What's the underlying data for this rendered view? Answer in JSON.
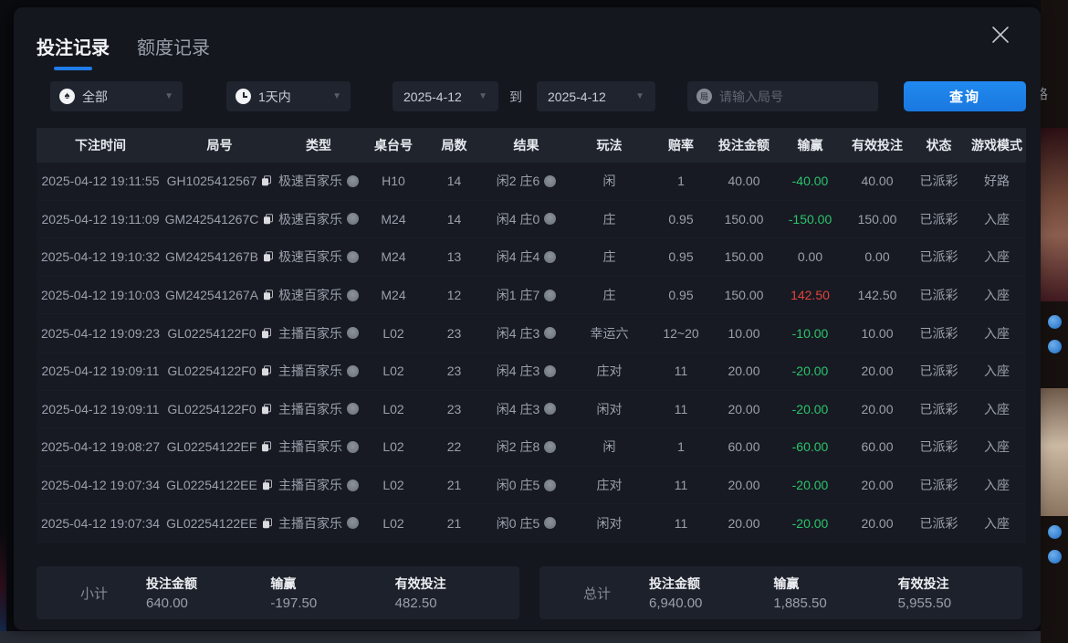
{
  "tabs": [
    {
      "label": "投注记录",
      "active": true
    },
    {
      "label": "额度记录",
      "active": false
    }
  ],
  "filters": {
    "category": {
      "value": "全部",
      "icon": "poker-chip-icon"
    },
    "range": {
      "value": "1天内",
      "icon": "clock-icon"
    },
    "date_from": "2025-4-12",
    "to_label": "到",
    "date_to": "2025-4-12",
    "search": {
      "placeholder": "请输入局号",
      "icon": "game-round-icon"
    },
    "query_button": "查询"
  },
  "background": {
    "road_text": "路"
  },
  "table": {
    "columns": [
      "下注时间",
      "局号",
      "类型",
      "桌台号",
      "局数",
      "结果",
      "玩法",
      "赔率",
      "投注金额",
      "输赢",
      "有效投注",
      "状态",
      "游戏模式"
    ],
    "rows": [
      {
        "time": "2025-04-12 19:11:55",
        "game_no": "GH1025412567",
        "type": "极速百家乐",
        "table_no": "H10",
        "rounds": "14",
        "result": "闲2 庄6",
        "play": "闲",
        "odds": "1",
        "bet": "40.00",
        "win_loss": "-40.00",
        "win_loss_color": "green",
        "valid": "40.00",
        "status": "已派彩",
        "mode": "好路"
      },
      {
        "time": "2025-04-12 19:11:09",
        "game_no": "GM242541267C",
        "type": "极速百家乐",
        "table_no": "M24",
        "rounds": "14",
        "result": "闲4 庄0",
        "play": "庄",
        "odds": "0.95",
        "bet": "150.00",
        "win_loss": "-150.00",
        "win_loss_color": "green",
        "valid": "150.00",
        "status": "已派彩",
        "mode": "入座"
      },
      {
        "time": "2025-04-12 19:10:32",
        "game_no": "GM242541267B",
        "type": "极速百家乐",
        "table_no": "M24",
        "rounds": "13",
        "result": "闲4 庄4",
        "play": "庄",
        "odds": "0.95",
        "bet": "150.00",
        "win_loss": "0.00",
        "win_loss_color": "muted",
        "valid": "0.00",
        "status": "已派彩",
        "mode": "入座"
      },
      {
        "time": "2025-04-12 19:10:03",
        "game_no": "GM242541267A",
        "type": "极速百家乐",
        "table_no": "M24",
        "rounds": "12",
        "result": "闲1 庄7",
        "play": "庄",
        "odds": "0.95",
        "bet": "150.00",
        "win_loss": "142.50",
        "win_loss_color": "red",
        "valid": "142.50",
        "status": "已派彩",
        "mode": "入座"
      },
      {
        "time": "2025-04-12 19:09:23",
        "game_no": "GL02254122F0",
        "type": "主播百家乐",
        "table_no": "L02",
        "rounds": "23",
        "result": "闲4 庄3",
        "play": "幸运六",
        "odds": "12~20",
        "bet": "10.00",
        "win_loss": "-10.00",
        "win_loss_color": "green",
        "valid": "10.00",
        "status": "已派彩",
        "mode": "入座"
      },
      {
        "time": "2025-04-12 19:09:11",
        "game_no": "GL02254122F0",
        "type": "主播百家乐",
        "table_no": "L02",
        "rounds": "23",
        "result": "闲4 庄3",
        "play": "庄对",
        "odds": "11",
        "bet": "20.00",
        "win_loss": "-20.00",
        "win_loss_color": "green",
        "valid": "20.00",
        "status": "已派彩",
        "mode": "入座"
      },
      {
        "time": "2025-04-12 19:09:11",
        "game_no": "GL02254122F0",
        "type": "主播百家乐",
        "table_no": "L02",
        "rounds": "23",
        "result": "闲4 庄3",
        "play": "闲对",
        "odds": "11",
        "bet": "20.00",
        "win_loss": "-20.00",
        "win_loss_color": "green",
        "valid": "20.00",
        "status": "已派彩",
        "mode": "入座"
      },
      {
        "time": "2025-04-12 19:08:27",
        "game_no": "GL02254122EF",
        "type": "主播百家乐",
        "table_no": "L02",
        "rounds": "22",
        "result": "闲2 庄8",
        "play": "闲",
        "odds": "1",
        "bet": "60.00",
        "win_loss": "-60.00",
        "win_loss_color": "green",
        "valid": "60.00",
        "status": "已派彩",
        "mode": "入座"
      },
      {
        "time": "2025-04-12 19:07:34",
        "game_no": "GL02254122EE",
        "type": "主播百家乐",
        "table_no": "L02",
        "rounds": "21",
        "result": "闲0 庄5",
        "play": "庄对",
        "odds": "11",
        "bet": "20.00",
        "win_loss": "-20.00",
        "win_loss_color": "green",
        "valid": "20.00",
        "status": "已派彩",
        "mode": "入座"
      },
      {
        "time": "2025-04-12 19:07:34",
        "game_no": "GL02254122EE",
        "type": "主播百家乐",
        "table_no": "L02",
        "rounds": "21",
        "result": "闲0 庄5",
        "play": "闲对",
        "odds": "11",
        "bet": "20.00",
        "win_loss": "-20.00",
        "win_loss_color": "green",
        "valid": "20.00",
        "status": "已派彩",
        "mode": "入座"
      }
    ]
  },
  "summary": {
    "subtotal": {
      "label": "小计",
      "bet_label": "投注金额",
      "bet": "640.00",
      "win_label": "输赢",
      "win": "-197.50",
      "win_color": "green",
      "valid_label": "有效投注",
      "valid": "482.50"
    },
    "total": {
      "label": "总计",
      "bet_label": "投注金额",
      "bet": "6,940.00",
      "win_label": "输赢",
      "win": "1,885.50",
      "win_color": "red",
      "valid_label": "有效投注",
      "valid": "5,955.50"
    }
  },
  "colors": {
    "accent_blue": "#1f7ce8",
    "win_green": "#2cc36b",
    "loss_red": "#e0443a"
  },
  "icons": [
    "poker-chip-icon",
    "clock-icon",
    "game-round-icon",
    "copy-icon",
    "info-circle-icon",
    "close-icon",
    "caret-down-icon"
  ]
}
